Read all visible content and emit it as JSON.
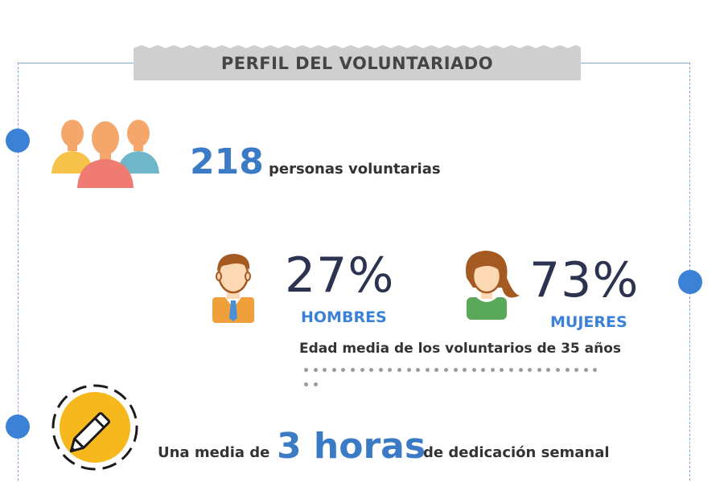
{
  "header": {
    "title": "PERFIL DEL VOLUNTARIADO"
  },
  "volunteers": {
    "count": "218",
    "label": "personas voluntarias"
  },
  "gender": {
    "men": {
      "percent": "27%",
      "label": "HOMBRES"
    },
    "women": {
      "percent": "73%",
      "label": "MUJERES"
    }
  },
  "age": {
    "text": "Edad media de los voluntarios de 35 años"
  },
  "hours": {
    "prefix": "Una media de",
    "value": "3 horas",
    "suffix": "de dedicación semanal"
  },
  "icons": [
    "people-group-icon",
    "man-icon",
    "woman-icon",
    "pencil-icon"
  ],
  "colors": {
    "accent_blue": "#3b82d6",
    "number_blue": "#3b7ac4",
    "percent_navy": "#2c3350",
    "banner_gray": "#cfcfcf",
    "badge_yellow": "#f6b81c"
  }
}
